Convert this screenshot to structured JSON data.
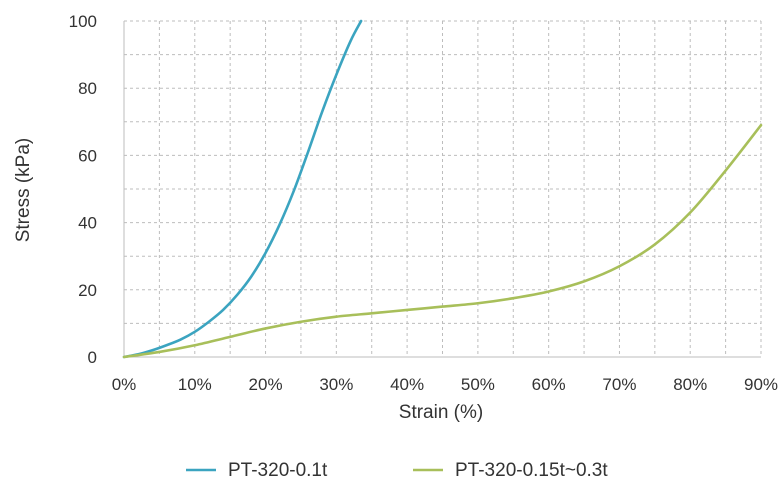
{
  "chart_data": {
    "type": "line",
    "title": "",
    "xlabel": "Strain (%)",
    "ylabel": "Stress (kPa)",
    "xlim": [
      0,
      90
    ],
    "ylim": [
      0,
      100
    ],
    "x_ticks": [
      0,
      5,
      10,
      15,
      20,
      25,
      30,
      35,
      40,
      45,
      50,
      55,
      60,
      65,
      70,
      75,
      80,
      85,
      90
    ],
    "x_tick_labels": [
      "0%",
      "",
      "10%",
      "",
      "20%",
      "",
      "30%",
      "",
      "40%",
      "",
      "50%",
      "",
      "60%",
      "",
      "70%",
      "",
      "80%",
      "",
      "90%"
    ],
    "y_ticks": [
      0,
      10,
      20,
      30,
      40,
      50,
      60,
      70,
      80,
      90,
      100
    ],
    "y_tick_labels": [
      "0",
      "",
      "20",
      "",
      "40",
      "",
      "60",
      "",
      "80",
      "",
      "100"
    ],
    "grid": true,
    "legend_position": "bottom",
    "series": [
      {
        "name": "PT-320-0.1t",
        "color": "#3ba4c0",
        "x": [
          0,
          2,
          4,
          6,
          8,
          10,
          12,
          14,
          16,
          18,
          20,
          22,
          24,
          26,
          28,
          30,
          32,
          33.5
        ],
        "y": [
          0,
          0.8,
          2.0,
          3.5,
          5.2,
          7.5,
          10.5,
          14.0,
          18.5,
          24.0,
          31.0,
          39.5,
          49.5,
          61.0,
          73.0,
          84.0,
          94.0,
          100
        ]
      },
      {
        "name": "PT-320-0.15t~0.3t",
        "color": "#a8bf5a",
        "x": [
          0,
          5,
          10,
          15,
          20,
          25,
          30,
          35,
          40,
          45,
          50,
          55,
          60,
          65,
          70,
          75,
          80,
          85,
          90
        ],
        "y": [
          0,
          1.5,
          3.5,
          6.0,
          8.5,
          10.5,
          12.0,
          13.0,
          14.0,
          15.0,
          16.0,
          17.5,
          19.5,
          22.5,
          27.0,
          33.5,
          43.0,
          55.5,
          69.0
        ]
      }
    ]
  }
}
